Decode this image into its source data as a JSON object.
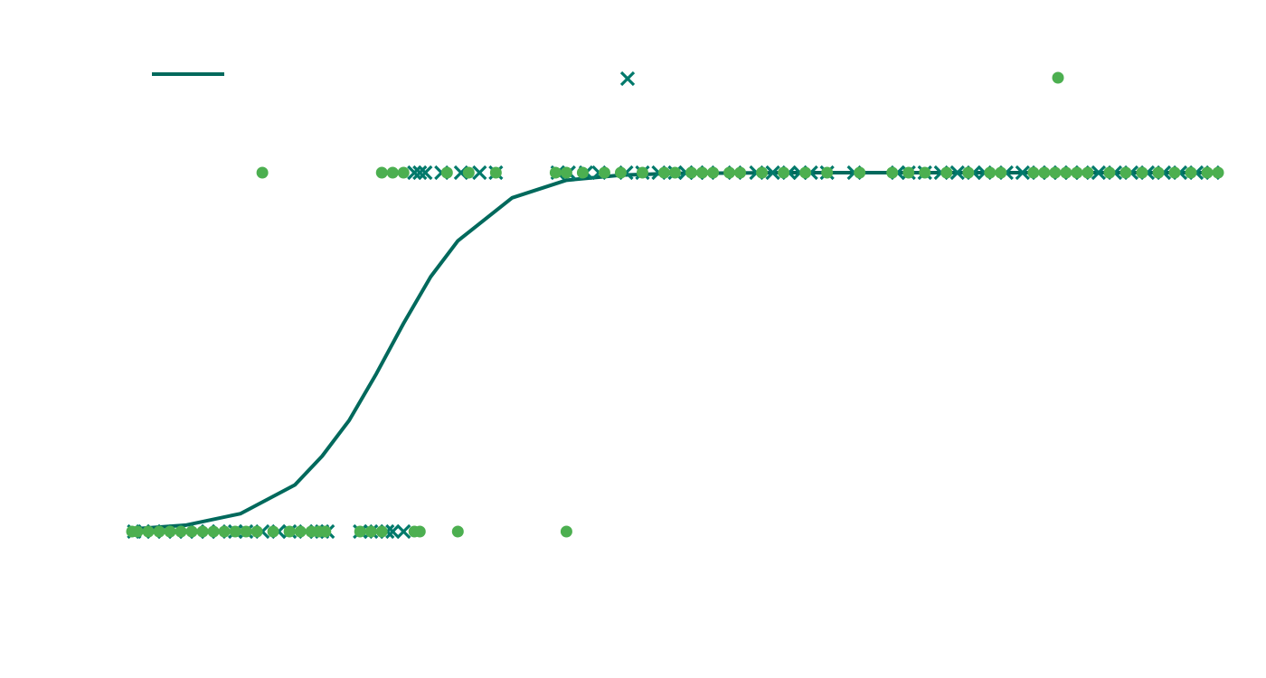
{
  "chart_data": {
    "type": "scatter",
    "title": "",
    "xlabel": "",
    "ylabel": "",
    "xlim": [
      0,
      10
    ],
    "ylim": [
      -0.2,
      1.2
    ],
    "grid": false,
    "legend_position": "top",
    "colors": {
      "curve": "#00695C",
      "x_marker": "#00796B",
      "dot_marker": "#4CAF50"
    },
    "series": [
      {
        "kind": "line",
        "marker": "line",
        "points": [
          [
            0,
            0.007
          ],
          [
            0.5,
            0.018
          ],
          [
            1.0,
            0.05
          ],
          [
            1.5,
            0.13
          ],
          [
            1.75,
            0.21
          ],
          [
            2.0,
            0.31
          ],
          [
            2.25,
            0.44
          ],
          [
            2.5,
            0.58
          ],
          [
            2.75,
            0.71
          ],
          [
            3.0,
            0.81
          ],
          [
            3.5,
            0.93
          ],
          [
            4.0,
            0.979
          ],
          [
            4.5,
            0.993
          ],
          [
            5.0,
            0.998
          ],
          [
            6.0,
            1.0
          ],
          [
            8.0,
            1.0
          ],
          [
            10.0,
            1.0
          ]
        ]
      },
      {
        "kind": "scatter",
        "marker": "x",
        "x_at_1": [
          2.6,
          2.65,
          2.7,
          2.85,
          3.03,
          3.2,
          3.35,
          3.92,
          4.02,
          4.18,
          4.3,
          4.55,
          4.7,
          4.85,
          5.0,
          5.1,
          5.2,
          5.3,
          5.55,
          5.75,
          5.9,
          6.05,
          6.15,
          6.25,
          6.4,
          6.65,
          7.05,
          7.15,
          7.3,
          7.45,
          7.6,
          7.75,
          7.85,
          8.05,
          8.2,
          8.35,
          8.45,
          8.55,
          8.65,
          8.75,
          8.9,
          9.05,
          9.2,
          9.35,
          9.5,
          9.65,
          9.8,
          9.95
        ],
        "x_at_0": [
          0.02,
          0.1,
          0.2,
          0.3,
          0.4,
          0.5,
          0.6,
          0.7,
          0.8,
          0.95,
          1.05,
          1.2,
          1.35,
          1.45,
          1.6,
          1.7,
          1.75,
          1.8,
          2.1,
          2.2,
          2.25,
          2.35,
          2.4,
          2.5
        ]
      },
      {
        "kind": "scatter",
        "marker": "o",
        "x_at_1": [
          1.2,
          2.3,
          2.4,
          2.5,
          2.9,
          3.1,
          3.35,
          3.9,
          4.0,
          4.15,
          4.35,
          4.5,
          4.7,
          4.9,
          5.0,
          5.15,
          5.25,
          5.35,
          5.5,
          5.6,
          5.8,
          6.0,
          6.2,
          6.4,
          6.7,
          7.0,
          7.15,
          7.3,
          7.5,
          7.7,
          7.9,
          8.0,
          8.3,
          8.4,
          8.5,
          8.6,
          8.7,
          8.8,
          9.0,
          9.15,
          9.3,
          9.45,
          9.6,
          9.75,
          9.9,
          10.0
        ],
        "x_at_0": [
          0.0,
          0.05,
          0.15,
          0.25,
          0.35,
          0.45,
          0.55,
          0.65,
          0.75,
          0.85,
          0.95,
          1.05,
          1.15,
          1.3,
          1.45,
          1.55,
          1.65,
          1.72,
          1.78,
          2.1,
          2.2,
          2.3,
          2.6,
          2.65,
          3.0,
          4.0
        ]
      }
    ]
  }
}
